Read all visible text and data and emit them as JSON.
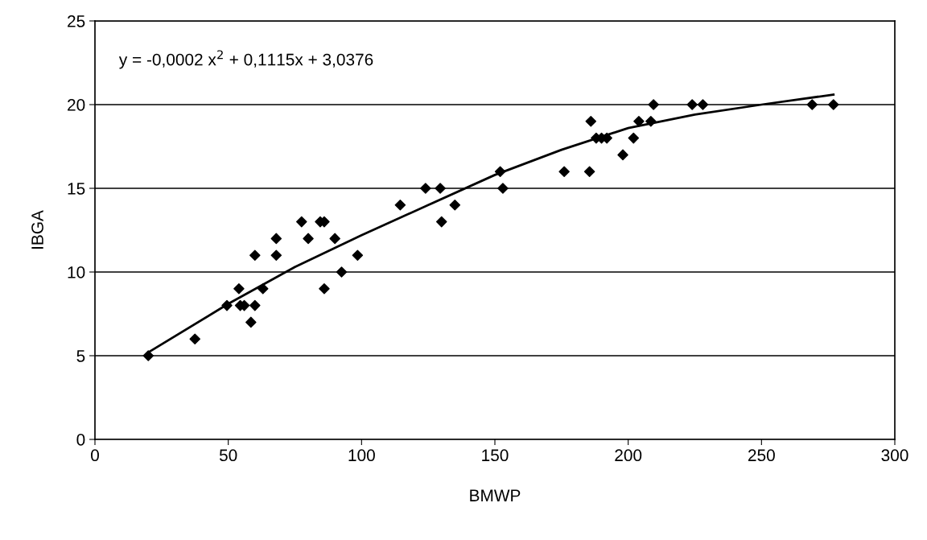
{
  "chart_data": {
    "type": "scatter",
    "xlabel": "BMWP",
    "ylabel": "IBGA",
    "annotations": [
      "y = -0,0002 x$^{2}$ + 0,1115x + 3,0376"
    ],
    "series": [
      {
        "color": "#000000",
        "marker": "diamond",
        "x": [
          20,
          37.5,
          49.5,
          54,
          54.5,
          56,
          58.5,
          60,
          60,
          63,
          68,
          68,
          77.5,
          80,
          84.5,
          86,
          86,
          90,
          92.5,
          98.5,
          114.5,
          124,
          129.5,
          130,
          135,
          152,
          153,
          176,
          185.5,
          186,
          188,
          190,
          192,
          198,
          202,
          204,
          208.5,
          209.5,
          224,
          228,
          269,
          277
        ],
        "values": [
          5,
          6,
          8,
          9,
          8,
          8,
          7,
          11,
          8,
          9,
          11,
          12,
          13,
          12,
          13,
          13,
          9,
          12,
          10,
          11,
          14,
          15,
          15,
          13,
          14,
          16,
          15,
          16,
          16,
          19,
          18,
          18,
          18,
          17,
          18,
          19,
          19,
          20,
          20,
          20,
          20,
          20
        ]
      },
      {
        "type": "line",
        "color": "#000000",
        "marker": "none",
        "line_style": "solid",
        "x": [
          20,
          50,
          75,
          100,
          125,
          150,
          175,
          200,
          225,
          250,
          277
        ],
        "values": [
          5.2,
          8.1,
          10.3,
          12.2,
          14.0,
          15.8,
          17.3,
          18.6,
          19.4,
          20.0,
          20.6
        ]
      }
    ],
    "xlim": [
      0,
      300
    ],
    "xticks": [
      0,
      50,
      100,
      150,
      200,
      250,
      300
    ],
    "ylim": [
      0,
      25
    ],
    "yticks": [
      0,
      5,
      10,
      15,
      20,
      25
    ],
    "grid": "y"
  }
}
